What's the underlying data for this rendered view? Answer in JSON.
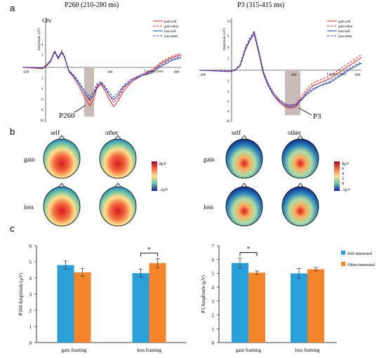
{
  "panels": {
    "a": "a",
    "b": "b",
    "c": "c"
  },
  "colors": {
    "gain_self": "#e41a1c",
    "gain_other": "#e41a1c",
    "loss_self": "#1f3fbf",
    "loss_other": "#1f3fbf",
    "bar_self": "#2b9fd8",
    "bar_other": "#f4852a",
    "window": "#c9bcb8"
  },
  "erp": {
    "left": {
      "title": "P260 (210-280 ms)",
      "channel": "CPz",
      "ylabel": "Amplitude (uV)",
      "xlabel": "Latency (ms)",
      "xticks": [
        "-200",
        "400",
        "800"
      ],
      "yticks_pos": [
        "2",
        "4"
      ],
      "yticks_neg": [
        "2",
        "4",
        "6",
        "8",
        "10"
      ],
      "annotation": "P260",
      "legend": [
        "gain-self",
        "gain-other",
        "loss-self",
        "loss-other"
      ]
    },
    "right": {
      "title": "P3 (315-415 ms)",
      "channel": "Pz",
      "ylabel": "Amplitude (uV)",
      "xlabel": "Latency (ms)",
      "xticks": [
        "-200",
        "400",
        "800"
      ],
      "yticks_pos": [
        "2",
        "4",
        "6"
      ],
      "yticks_neg": [
        "2",
        "4",
        "6",
        "8",
        "10"
      ],
      "annotation": "P3",
      "legend": [
        "gain-self",
        "gain-other",
        "loss-self",
        "loss-other"
      ]
    }
  },
  "topo": {
    "col_self": "self",
    "col_other": "other",
    "row_gain": "gain",
    "row_loss": "loss",
    "left_bar": {
      "top": "8μV",
      "bottom": "-2μV"
    },
    "right_bar": {
      "top": "8μV",
      "mid": [
        "6",
        "4",
        "2",
        "0"
      ],
      "bottom": "-2μV"
    }
  },
  "chart_data": [
    {
      "type": "bar",
      "title": "",
      "ylabel": "P260 Amplitude (μV)",
      "xlabel": "",
      "categories": [
        "gain framing",
        "loss framing"
      ],
      "ylim": [
        0,
        6
      ],
      "yticks": [
        "0",
        "1",
        "2",
        "3",
        "4",
        "5",
        "6"
      ],
      "series": [
        {
          "name": "Self-interested",
          "values": [
            4.8,
            4.3
          ],
          "errors": [
            0.25,
            0.25
          ]
        },
        {
          "name": "Other-interested",
          "values": [
            4.35,
            4.92
          ],
          "errors": [
            0.25,
            0.28
          ]
        }
      ],
      "significance": {
        "category": "loss framing",
        "mark": "*"
      }
    },
    {
      "type": "bar",
      "title": "",
      "ylabel": "P3 Amplitude (μV)",
      "xlabel": "",
      "categories": [
        "gain framing",
        "loss framing"
      ],
      "ylim": [
        0,
        7
      ],
      "yticks": [
        "0",
        "1",
        "2",
        "3",
        "4",
        "5",
        "6",
        "7"
      ],
      "series": [
        {
          "name": "Self-interested",
          "values": [
            5.75,
            5.0
          ],
          "errors": [
            0.35,
            0.35
          ]
        },
        {
          "name": "Other-interested",
          "values": [
            5.05,
            5.3
          ],
          "errors": [
            0.12,
            0.12
          ]
        }
      ],
      "significance": {
        "category": "gain framing",
        "mark": "*"
      },
      "legend": [
        "Self-interested",
        "Other-interested"
      ]
    }
  ]
}
